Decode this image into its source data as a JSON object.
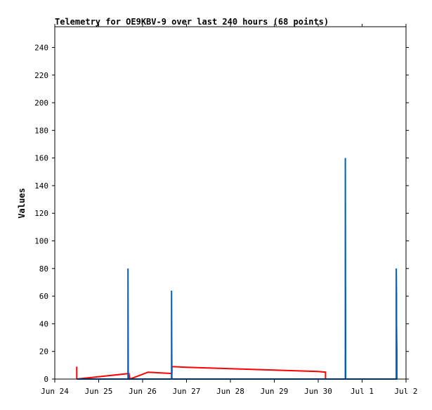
{
  "chart_data": {
    "type": "line",
    "title": "Telemetry for OE9KBV-9 over last 240 hours (68 points)",
    "xlabel": "",
    "ylabel": "Values",
    "x_tick_labels": [
      "Jun 24",
      "Jun 25",
      "Jun 26",
      "Jun 27",
      "Jun 28",
      "Jun 29",
      "Jun 30",
      "Jul 1",
      "Jul 2"
    ],
    "xlim": [
      "Jun 24 00:00",
      "Jul 2 00:00"
    ],
    "y_ticks": [
      0,
      20,
      40,
      60,
      80,
      100,
      120,
      140,
      160,
      180,
      200,
      220,
      240
    ],
    "ylim": [
      0,
      255
    ],
    "grid": false,
    "series": [
      {
        "color": "#ff0000",
        "segments": [
          {
            "x": [
              "Jun 24 12:00",
              "Jun 24 12:00"
            ],
            "y": [
              9,
              0
            ]
          },
          {
            "x": [
              "Jun 24 12:00",
              "Jun 25 16:30",
              "Jun 25 17:00",
              "Jun 26 03:00",
              "Jun 26 16:00",
              "Jun 26 16:00",
              "Jun 27 00:00",
              "Jun 28 00:00",
              "Jun 29 00:00",
              "Jun 30 00:00",
              "Jun 30 04:00",
              "Jun 30 04:00"
            ],
            "y": [
              0,
              4,
              0,
              5,
              4,
              9,
              8.5,
              7.5,
              6.5,
              5.5,
              5,
              0
            ]
          }
        ]
      },
      {
        "color": "#0060c0",
        "segments": [
          {
            "x": [
              "Jun 24 12:00",
              "Jun 25 16:00",
              "Jun 25 16:00",
              "Jun 25 16:10",
              "Jun 26 15:50",
              "Jun 26 15:50",
              "Jun 26 16:00",
              "Jul 0 14:50",
              "Jul 0 14:50",
              "Jul 0 15:00",
              "Jul 1 18:40",
              "Jul 1 18:40",
              "Jul 1 18:50",
              "Jul 1 18:50",
              "Jul 1 19:00",
              "Jul 1 19:00",
              "Jul 1 19:10"
            ],
            "y": [
              0,
              0,
              80,
              0,
              0,
              64,
              0,
              0,
              160,
              0,
              0,
              80,
              60,
              40,
              20,
              0,
              0
            ]
          }
        ]
      }
    ]
  }
}
